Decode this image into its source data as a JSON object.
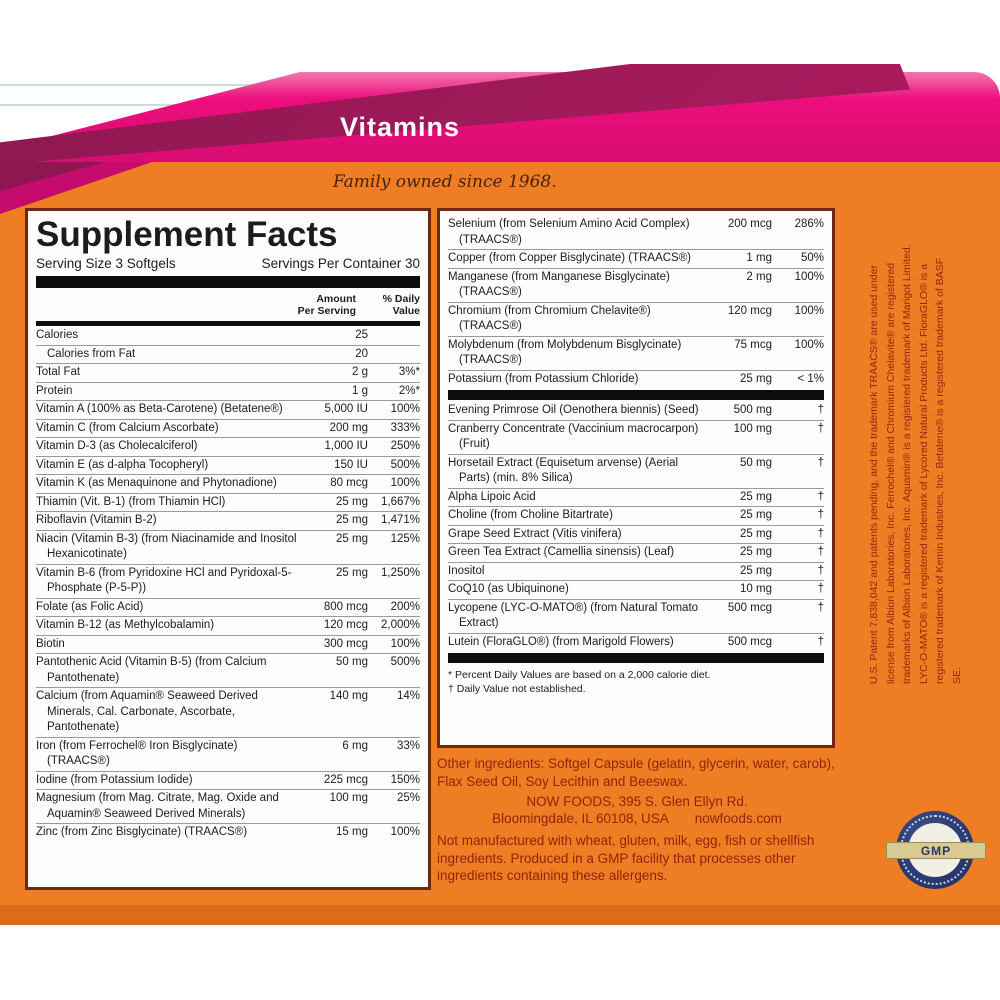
{
  "header": {
    "category_label": "Vitamins",
    "tagline": "Family owned since 1968."
  },
  "supplement_facts": {
    "title": "Supplement Facts",
    "serving_size": "Serving Size 3 Softgels",
    "servings_per_container": "Servings Per Container 30",
    "col_amount_header": "Amount\nPer Serving",
    "col_dv_header": "% Daily\nValue",
    "left_rows": [
      {
        "label": "Calories",
        "amount": "25",
        "dv": ""
      },
      {
        "label": "Calories from Fat",
        "amount": "20",
        "dv": "",
        "indent": true
      },
      {
        "label": "Total Fat",
        "amount": "2 g",
        "dv": "3%*"
      },
      {
        "label": "Protein",
        "amount": "1 g",
        "dv": "2%*"
      },
      {
        "label": "Vitamin A (100% as Beta-Carotene) (Betatene®)",
        "amount": "5,000 IU",
        "dv": "100%"
      },
      {
        "label": "Vitamin C (from Calcium Ascorbate)",
        "amount": "200 mg",
        "dv": "333%"
      },
      {
        "label": "Vitamin D-3 (as Cholecalciferol)",
        "amount": "1,000 IU",
        "dv": "250%"
      },
      {
        "label": "Vitamin E (as d-alpha Tocopheryl)",
        "amount": "150 IU",
        "dv": "500%"
      },
      {
        "label": "Vitamin K (as Menaquinone and Phytonadione)",
        "amount": "80 mcg",
        "dv": "100%"
      },
      {
        "label": "Thiamin (Vit. B-1) (from Thiamin HCl)",
        "amount": "25 mg",
        "dv": "1,667%"
      },
      {
        "label": "Riboflavin (Vitamin B-2)",
        "amount": "25 mg",
        "dv": "1,471%"
      },
      {
        "label": "Niacin (Vitamin B-3) (from Niacinamide and Inositol Hexanicotinate)",
        "amount": "25 mg",
        "dv": "125%"
      },
      {
        "label": "Vitamin B-6 (from Pyridoxine HCl and Pyridoxal-5-Phosphate (P-5-P))",
        "amount": "25 mg",
        "dv": "1,250%"
      },
      {
        "label": "Folate (as Folic Acid)",
        "amount": "800 mcg",
        "dv": "200%"
      },
      {
        "label": "Vitamin B-12 (as Methylcobalamin)",
        "amount": "120 mcg",
        "dv": "2,000%"
      },
      {
        "label": "Biotin",
        "amount": "300 mcg",
        "dv": "100%"
      },
      {
        "label": "Pantothenic Acid (Vitamin B-5) (from Calcium Pantothenate)",
        "amount": "50 mg",
        "dv": "500%"
      },
      {
        "label": "Calcium (from Aquamin® Seaweed Derived Minerals, Cal. Carbonate, Ascorbate, Pantothenate)",
        "amount": "140 mg",
        "dv": "14%"
      },
      {
        "label": "Iron (from Ferrochel® Iron Bisglycinate) (TRAACS®)",
        "amount": "6 mg",
        "dv": "33%"
      },
      {
        "label": "Iodine (from Potassium Iodide)",
        "amount": "225 mcg",
        "dv": "150%"
      },
      {
        "label": "Magnesium (from Mag. Citrate, Mag. Oxide and Aquamin® Seaweed Derived Minerals)",
        "amount": "100 mg",
        "dv": "25%"
      },
      {
        "label": "Zinc (from Zinc Bisglycinate) (TRAACS®)",
        "amount": "15 mg",
        "dv": "100%"
      }
    ],
    "right_rows_minerals": [
      {
        "label": "Selenium (from Selenium Amino Acid Complex) (TRAACS®)",
        "amount": "200 mcg",
        "dv": "286%"
      },
      {
        "label": "Copper (from Copper Bisglycinate) (TRAACS®)",
        "amount": "1 mg",
        "dv": "50%"
      },
      {
        "label": "Manganese (from Manganese Bisglycinate) (TRAACS®)",
        "amount": "2 mg",
        "dv": "100%"
      },
      {
        "label": "Chromium (from Chromium Chelavite®) (TRAACS®)",
        "amount": "120 mcg",
        "dv": "100%"
      },
      {
        "label": "Molybdenum (from Molybdenum Bisglycinate) (TRAACS®)",
        "amount": "75 mcg",
        "dv": "100%"
      },
      {
        "label": "Potassium (from Potassium Chloride)",
        "amount": "25 mg",
        "dv": "< 1%"
      }
    ],
    "right_rows_botanicals": [
      {
        "label": "Evening Primrose Oil (Oenothera biennis) (Seed)",
        "amount": "500 mg",
        "dv": "†"
      },
      {
        "label": "Cranberry Concentrate (Vaccinium macrocarpon) (Fruit)",
        "amount": "100 mg",
        "dv": "†"
      },
      {
        "label": "Horsetail Extract (Equisetum arvense) (Aerial Parts) (min. 8% Silica)",
        "amount": "50 mg",
        "dv": "†"
      },
      {
        "label": "Alpha Lipoic Acid",
        "amount": "25 mg",
        "dv": "†"
      },
      {
        "label": "Choline (from Choline Bitartrate)",
        "amount": "25 mg",
        "dv": "†"
      },
      {
        "label": "Grape Seed Extract (Vitis vinifera)",
        "amount": "25 mg",
        "dv": "†"
      },
      {
        "label": "Green Tea Extract (Camellia sinensis) (Leaf)",
        "amount": "25 mg",
        "dv": "†"
      },
      {
        "label": "Inositol",
        "amount": "25 mg",
        "dv": "†"
      },
      {
        "label": "CoQ10 (as Ubiquinone)",
        "amount": "10 mg",
        "dv": "†"
      },
      {
        "label": "Lycopene (LYC-O-MATO®) (from Natural Tomato Extract)",
        "amount": "500 mcg",
        "dv": "†"
      },
      {
        "label": "Lutein (FloraGLO®) (from Marigold Flowers)",
        "amount": "500 mcg",
        "dv": "†"
      }
    ],
    "footnote_dv": "* Percent Daily Values are based on a 2,000 calorie diet.",
    "footnote_dagger": "† Daily Value not established."
  },
  "other_ingredients": "Other ingredients: Softgel Capsule (gelatin, glycerin, water, carob), Flax Seed Oil, Soy Lecithin and Beeswax.",
  "address": {
    "line1": "NOW FOODS, 395 S. Glen Ellyn Rd.",
    "line2": "Bloomingdale, IL 60108, USA",
    "website": "nowfoods.com"
  },
  "allergen_statement": "Not manufactured with wheat, gluten, milk, egg, fish or shellfish ingredients. Produced in a GMP facility that processes other ingredients containing these allergens.",
  "trademark_notice": "U.S. Patent 7,838,042 and patents pending, and the trademark TRAACS® are used under license from Albion Laboratories, Inc. Ferrochel® and Chromium Chelavite® are registered trademarks of Albion Laboratories, Inc. Aquamin® is a registered trademark of Marigot Limited. LYC-O-MATO® is a registered trademark of Lycored Natural Products Ltd. FloraGLO® is a registered trademark of Kemin Industries, Inc. Betatene® is a registered trademark of BASF SE.",
  "seal": {
    "label": "GMP"
  },
  "colors": {
    "band_maroon": "#9c1a57",
    "band_pink": "#ec0e7d",
    "background_orange": "#ee7d23",
    "panel_border": "#6d2a12",
    "body_text_red": "#8f2509",
    "seal_navy": "#27356b",
    "seal_tan": "#d8ca92"
  }
}
